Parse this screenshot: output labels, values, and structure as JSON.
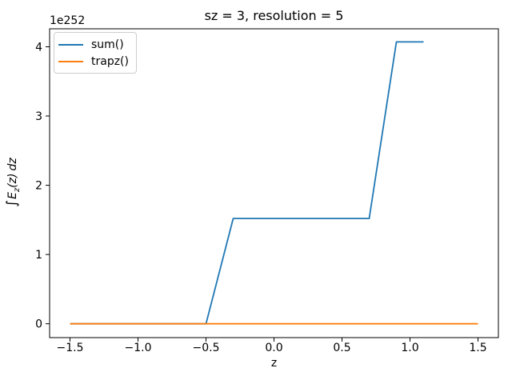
{
  "figure": {
    "title": "sz = 3, resolution = 5",
    "offset_text": "1e252",
    "xlabel": "z",
    "ylabel_text": "∫E_z(z) dz",
    "ylabel_parts": {
      "integral": "∫",
      "body": "E",
      "subscript": "z",
      "argument": "(z)",
      "differential": "dz"
    }
  },
  "chart_data": {
    "type": "line",
    "title": "sz = 3, resolution = 5",
    "xlabel": "z",
    "ylabel": "∫E_z(z) dz",
    "y_offset_factor": "1e252",
    "y_units": "1e252",
    "xlim": [
      -1.65,
      1.65
    ],
    "ylim": [
      -0.2,
      4.26
    ],
    "x_ticks": [
      -1.5,
      -1.0,
      -0.5,
      0.0,
      0.5,
      1.0,
      1.5
    ],
    "x_tick_labels": [
      "−1.5",
      "−1.0",
      "−0.5",
      "0.0",
      "0.5",
      "1.0",
      "1.5"
    ],
    "y_ticks": [
      0,
      1,
      2,
      3,
      4
    ],
    "y_tick_labels": [
      "0",
      "1",
      "2",
      "3",
      "4"
    ],
    "grid": false,
    "legend_position": "upper-left",
    "series": [
      {
        "name": "sum()",
        "color": "#1f77b4",
        "x": [
          -1.5,
          -0.5,
          -0.3,
          0.7,
          0.9,
          1.1
        ],
        "y": [
          0,
          0,
          1.52,
          1.52,
          4.07,
          4.07
        ]
      },
      {
        "name": "trapz()",
        "color": "#ff7f0e",
        "x": [
          -1.5,
          1.5
        ],
        "y": [
          0,
          0
        ]
      }
    ]
  }
}
